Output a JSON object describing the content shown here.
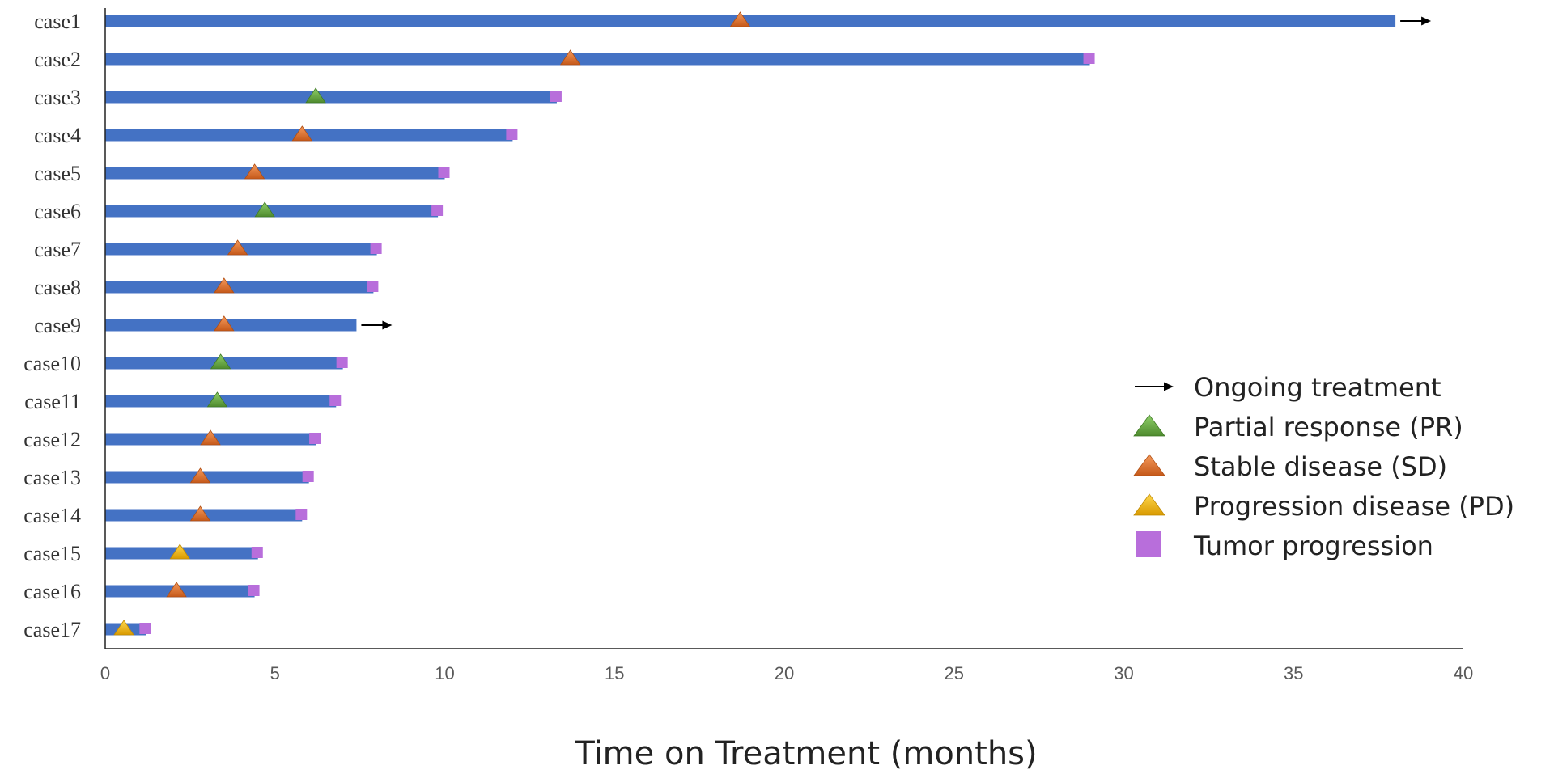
{
  "chart_data": {
    "type": "swimmer",
    "xlabel": "Time on Treatment (months)",
    "xlim": [
      0,
      40
    ],
    "xticks": [
      0,
      5,
      10,
      15,
      20,
      25,
      30,
      35,
      40
    ],
    "xtick_labels": [
      "0",
      "5",
      "10",
      "15",
      "20",
      "25",
      "30",
      "35",
      "40"
    ],
    "cases": [
      {
        "label": "case1",
        "duration": 38.0,
        "response_time": 18.7,
        "response": "SD",
        "ongoing": true
      },
      {
        "label": "case2",
        "duration": 29.0,
        "response_time": 13.7,
        "response": "SD",
        "progression_time": 29.0
      },
      {
        "label": "case3",
        "duration": 13.3,
        "response_time": 6.2,
        "response": "PR",
        "progression_time": 13.3
      },
      {
        "label": "case4",
        "duration": 12.0,
        "response_time": 5.8,
        "response": "SD",
        "progression_time": 12.0
      },
      {
        "label": "case5",
        "duration": 10.0,
        "response_time": 4.4,
        "response": "SD",
        "progression_time": 10.0
      },
      {
        "label": "case6",
        "duration": 9.8,
        "response_time": 4.7,
        "response": "PR",
        "progression_time": 9.8
      },
      {
        "label": "case7",
        "duration": 8.0,
        "response_time": 3.9,
        "response": "SD",
        "progression_time": 8.0
      },
      {
        "label": "case8",
        "duration": 7.9,
        "response_time": 3.5,
        "response": "SD",
        "progression_time": 7.9
      },
      {
        "label": "case9",
        "duration": 7.4,
        "response_time": 3.5,
        "response": "SD",
        "ongoing": true
      },
      {
        "label": "case10",
        "duration": 7.0,
        "response_time": 3.4,
        "response": "PR",
        "progression_time": 7.0
      },
      {
        "label": "case11",
        "duration": 6.8,
        "response_time": 3.3,
        "response": "PR",
        "progression_time": 6.8
      },
      {
        "label": "case12",
        "duration": 6.2,
        "response_time": 3.1,
        "response": "SD",
        "progression_time": 6.2
      },
      {
        "label": "case13",
        "duration": 6.0,
        "response_time": 2.8,
        "response": "SD",
        "progression_time": 6.0
      },
      {
        "label": "case14",
        "duration": 5.8,
        "response_time": 2.8,
        "response": "SD",
        "progression_time": 5.8
      },
      {
        "label": "case15",
        "duration": 4.5,
        "response_time": 2.2,
        "response": "PD",
        "progression_time": 4.5
      },
      {
        "label": "case16",
        "duration": 4.4,
        "response_time": 2.1,
        "response": "SD",
        "progression_time": 4.4
      },
      {
        "label": "case17",
        "duration": 1.2,
        "response_time": 0.55,
        "response": "PD",
        "progression_time": 1.2
      }
    ],
    "legend": {
      "position": "right",
      "entries": [
        {
          "key": "ongoing",
          "label": "Ongoing treatment"
        },
        {
          "key": "PR",
          "label": "Partial response (PR)"
        },
        {
          "key": "SD",
          "label": "Stable disease (SD)"
        },
        {
          "key": "PD",
          "label": "Progression disease (PD)"
        },
        {
          "key": "progression",
          "label": "Tumor progression"
        }
      ]
    },
    "colors": {
      "bar": "#4472C4",
      "PR": "#70AD47",
      "SD": "#ED7D31",
      "PD": "#FFC000",
      "progression": "#B86EDB",
      "arrow": "#000000",
      "axis": "#222222"
    }
  }
}
